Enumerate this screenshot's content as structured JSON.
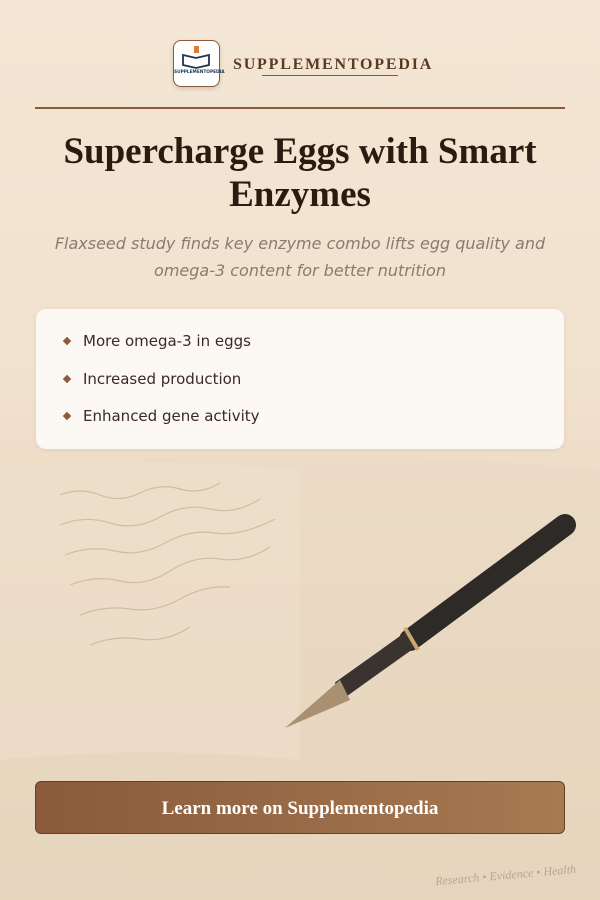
{
  "header": {
    "logo_text": "SUPPLEMENTOPEDIA",
    "brand": "SUPPLEMENTOPEDIA"
  },
  "title": "Supercharge Eggs with Smart Enzymes",
  "subtitle": "Flaxseed study finds key enzyme combo lifts egg quality and omega-3 content for better nutrition",
  "highlights": [
    "More omega-3 in eggs",
    "Increased production",
    "Enhanced gene activity"
  ],
  "button": "Learn more on Supplementopedia",
  "footer": "Research • Evidence • Health"
}
